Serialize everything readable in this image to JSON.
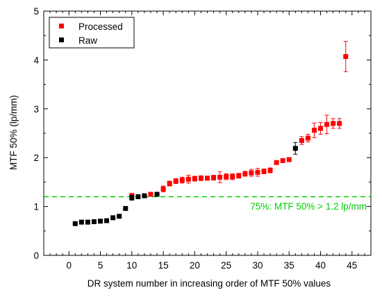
{
  "chart_data": {
    "type": "scatter",
    "xlabel": "DR system number in increasing order of MTF 50% values",
    "ylabel": "MTF 50% (lp/mm)",
    "xlim": [
      -4,
      48
    ],
    "ylim": [
      0,
      5
    ],
    "x_ticks": [
      0,
      5,
      10,
      15,
      20,
      25,
      30,
      35,
      40,
      45
    ],
    "y_ticks": [
      0,
      1,
      2,
      3,
      4,
      5
    ],
    "x_minor_step": 1,
    "y_minor_step": 0.5,
    "grid": false,
    "legend_position": "top-left",
    "series": [
      {
        "name": "Processed",
        "color": "#ff0000",
        "marker": "square",
        "points": [
          {
            "x": 10,
            "y": 1.22,
            "err": 0.05
          },
          {
            "x": 13,
            "y": 1.25,
            "err": 0.03
          },
          {
            "x": 15,
            "y": 1.36,
            "err": 0.06
          },
          {
            "x": 16,
            "y": 1.47,
            "err": 0.05
          },
          {
            "x": 17,
            "y": 1.52,
            "err": 0.05
          },
          {
            "x": 18,
            "y": 1.54,
            "err": 0.06
          },
          {
            "x": 19,
            "y": 1.56,
            "err": 0.08
          },
          {
            "x": 20,
            "y": 1.57,
            "err": 0.05
          },
          {
            "x": 21,
            "y": 1.58,
            "err": 0.05
          },
          {
            "x": 22,
            "y": 1.58,
            "err": 0.04
          },
          {
            "x": 23,
            "y": 1.59,
            "err": 0.05
          },
          {
            "x": 24,
            "y": 1.6,
            "err": 0.11
          },
          {
            "x": 25,
            "y": 1.61,
            "err": 0.06
          },
          {
            "x": 26,
            "y": 1.61,
            "err": 0.06
          },
          {
            "x": 27,
            "y": 1.63,
            "err": 0.05
          },
          {
            "x": 28,
            "y": 1.67,
            "err": 0.05
          },
          {
            "x": 29,
            "y": 1.69,
            "err": 0.07
          },
          {
            "x": 30,
            "y": 1.7,
            "err": 0.08
          },
          {
            "x": 31,
            "y": 1.72,
            "err": 0.05
          },
          {
            "x": 32,
            "y": 1.74,
            "err": 0.05
          },
          {
            "x": 33,
            "y": 1.9,
            "err": 0.04
          },
          {
            "x": 34,
            "y": 1.94,
            "err": 0.04
          },
          {
            "x": 35,
            "y": 1.96,
            "err": 0.04
          },
          {
            "x": 37,
            "y": 2.35,
            "err": 0.08
          },
          {
            "x": 38,
            "y": 2.4,
            "err": 0.08
          },
          {
            "x": 39,
            "y": 2.56,
            "err": 0.15
          },
          {
            "x": 40,
            "y": 2.6,
            "err": 0.12
          },
          {
            "x": 41,
            "y": 2.68,
            "err": 0.19
          },
          {
            "x": 42,
            "y": 2.7,
            "err": 0.1
          },
          {
            "x": 43,
            "y": 2.7,
            "err": 0.1
          },
          {
            "x": 44,
            "y": 4.07,
            "err": 0.31
          }
        ]
      },
      {
        "name": "Raw",
        "color": "#000000",
        "marker": "square",
        "points": [
          {
            "x": 1,
            "y": 0.65,
            "err": 0
          },
          {
            "x": 2,
            "y": 0.68,
            "err": 0
          },
          {
            "x": 3,
            "y": 0.68,
            "err": 0
          },
          {
            "x": 4,
            "y": 0.69,
            "err": 0
          },
          {
            "x": 5,
            "y": 0.7,
            "err": 0
          },
          {
            "x": 6,
            "y": 0.71,
            "err": 0
          },
          {
            "x": 7,
            "y": 0.77,
            "err": 0
          },
          {
            "x": 8,
            "y": 0.8,
            "err": 0
          },
          {
            "x": 9,
            "y": 0.96,
            "err": 0
          },
          {
            "x": 10,
            "y": 1.18,
            "err": 0.05
          },
          {
            "x": 11,
            "y": 1.2,
            "err": 0
          },
          {
            "x": 12,
            "y": 1.22,
            "err": 0
          },
          {
            "x": 14,
            "y": 1.25,
            "err": 0
          },
          {
            "x": 36,
            "y": 2.19,
            "err": 0.12
          }
        ]
      }
    ],
    "reference_line": {
      "y": 1.2,
      "color": "#00cc00",
      "style": "dashed",
      "label": "75%: MTF 50% > 1.2 lp/mm"
    }
  }
}
